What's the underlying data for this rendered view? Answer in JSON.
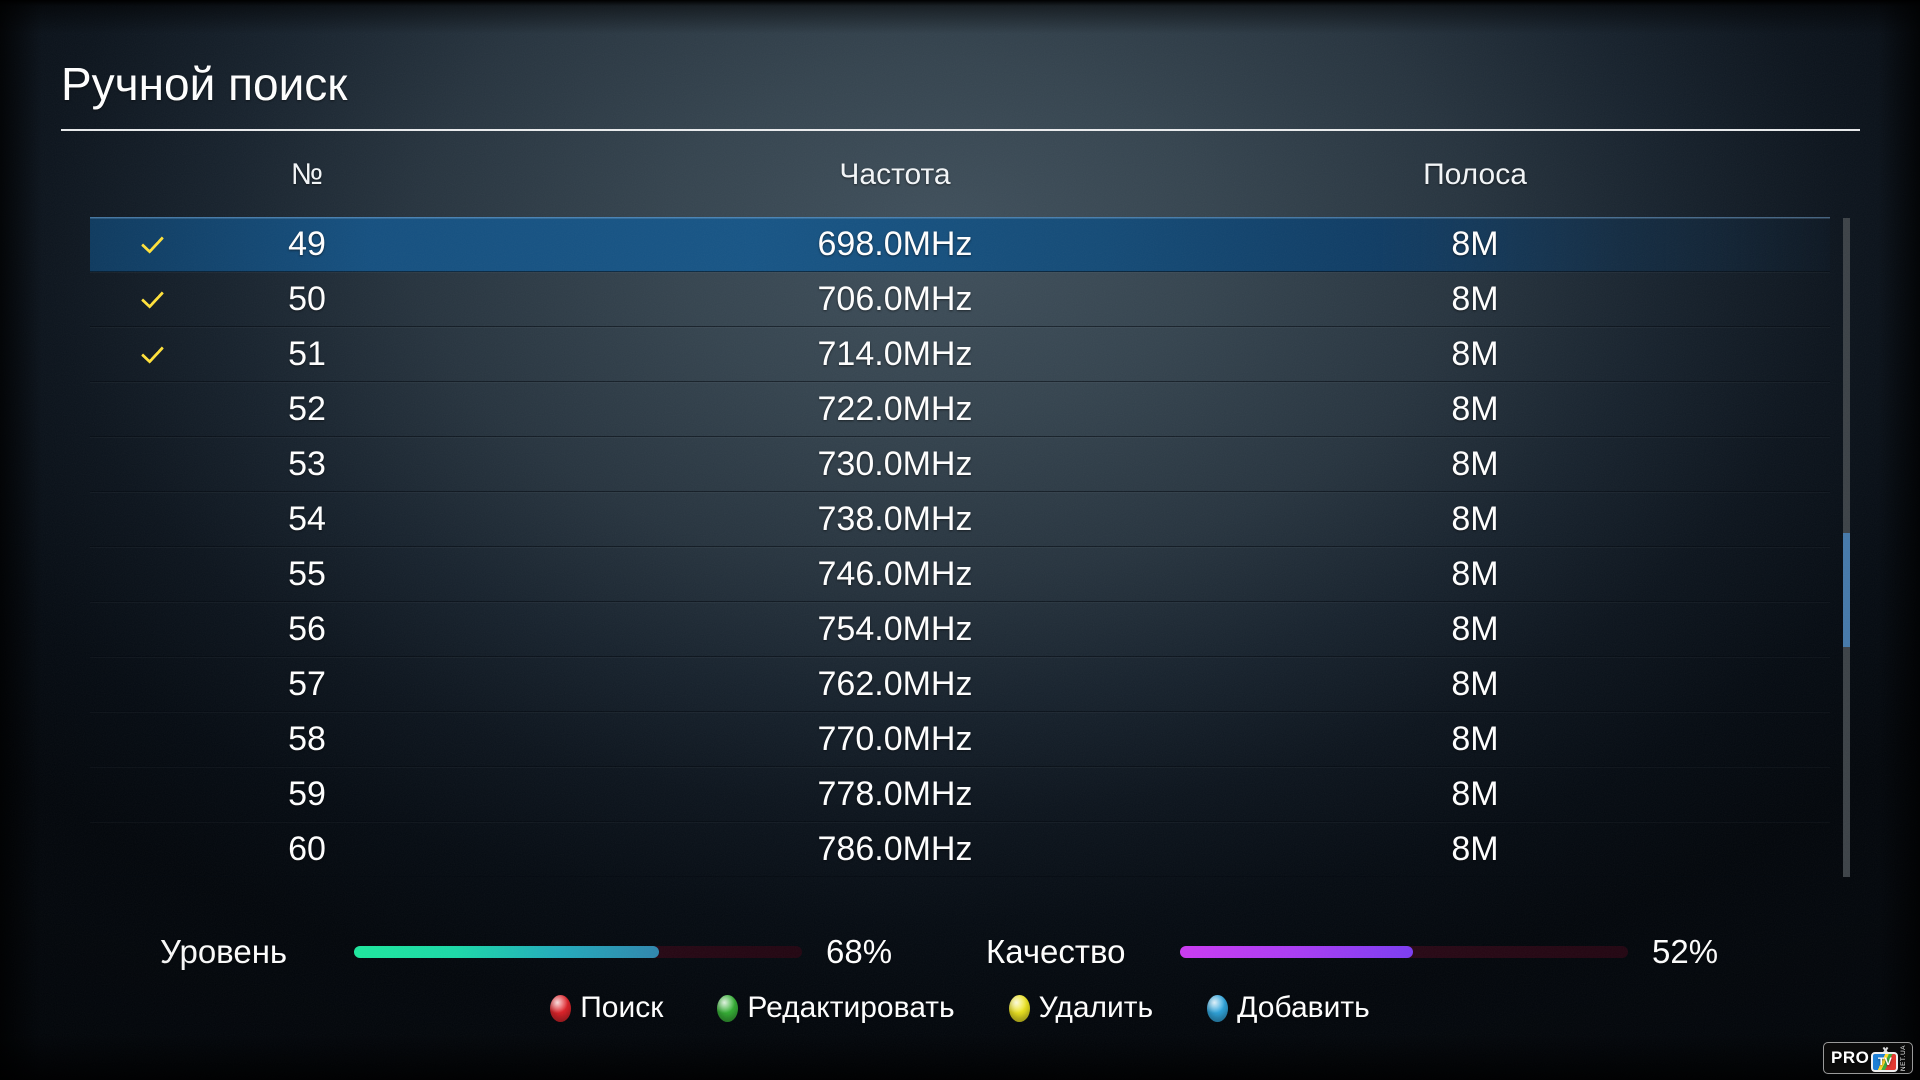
{
  "window": {
    "title": "Ручной поиск"
  },
  "table": {
    "headers": {
      "number": "№",
      "frequency": "Частота",
      "bandwidth": "Полоса"
    },
    "rows": [
      {
        "number": "49",
        "frequency": "698.0MHz",
        "bandwidth": "8M",
        "checked": true,
        "selected": true
      },
      {
        "number": "50",
        "frequency": "706.0MHz",
        "bandwidth": "8M",
        "checked": true,
        "selected": false
      },
      {
        "number": "51",
        "frequency": "714.0MHz",
        "bandwidth": "8M",
        "checked": true,
        "selected": false
      },
      {
        "number": "52",
        "frequency": "722.0MHz",
        "bandwidth": "8M",
        "checked": false,
        "selected": false
      },
      {
        "number": "53",
        "frequency": "730.0MHz",
        "bandwidth": "8M",
        "checked": false,
        "selected": false
      },
      {
        "number": "54",
        "frequency": "738.0MHz",
        "bandwidth": "8M",
        "checked": false,
        "selected": false
      },
      {
        "number": "55",
        "frequency": "746.0MHz",
        "bandwidth": "8M",
        "checked": false,
        "selected": false
      },
      {
        "number": "56",
        "frequency": "754.0MHz",
        "bandwidth": "8M",
        "checked": false,
        "selected": false
      },
      {
        "number": "57",
        "frequency": "762.0MHz",
        "bandwidth": "8M",
        "checked": false,
        "selected": false
      },
      {
        "number": "58",
        "frequency": "770.0MHz",
        "bandwidth": "8M",
        "checked": false,
        "selected": false
      },
      {
        "number": "59",
        "frequency": "778.0MHz",
        "bandwidth": "8M",
        "checked": false,
        "selected": false
      },
      {
        "number": "60",
        "frequency": "786.0MHz",
        "bandwidth": "8M",
        "checked": false,
        "selected": false
      }
    ]
  },
  "meters": [
    {
      "label": "Уровень",
      "value": "68%",
      "percent": 68,
      "fill_stops": [
        "#1de89d",
        "#1bd9a8",
        "#22acbc",
        "#2f86ae"
      ]
    },
    {
      "label": "Качество",
      "value": "52%",
      "percent": 52,
      "fill_stops": [
        "#cb3af2",
        "#aa3cf4",
        "#7b3cf2"
      ]
    }
  ],
  "legend": [
    {
      "label": "Поиск",
      "color": "#e32128",
      "key": "red"
    },
    {
      "label": "Редактировать",
      "color": "#35b335",
      "key": "green"
    },
    {
      "label": "Удалить",
      "color": "#f1e81f",
      "key": "yellow"
    },
    {
      "label": "Добавить",
      "color": "#2ea7e0",
      "key": "blue"
    }
  ],
  "logo": {
    "pro": "PRO",
    "tv": "TV",
    "suffix": "NET.UA"
  },
  "colors": {
    "check": "#ffe13a",
    "selected_row": "#175585",
    "scroll_thumb": "#4579aa",
    "scroll_track": "#3c4247",
    "meter_track": "#2d0a18",
    "title_line": "#f4f6f7"
  }
}
